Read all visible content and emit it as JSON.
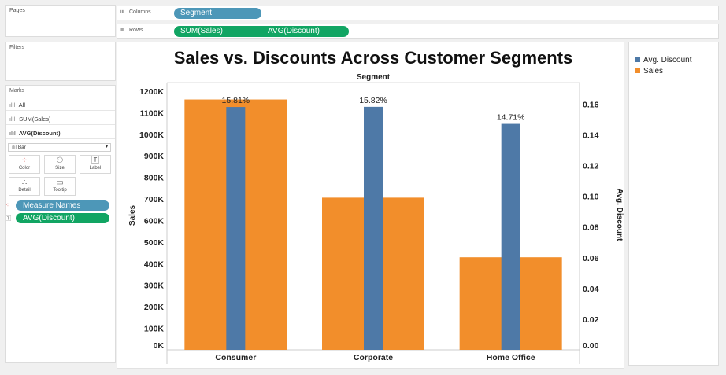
{
  "left_pane": {
    "pages_title": "Pages",
    "filters_title": "Filters",
    "marks_title": "Marks",
    "mark_layers": [
      {
        "label": "All",
        "icon": "bar-icon",
        "bold": false
      },
      {
        "label": "SUM(Sales)",
        "icon": "bar-icon",
        "bold": false
      },
      {
        "label": "AVG(Discount)",
        "icon": "bar-icon",
        "bold": true
      }
    ],
    "mark_type": "Bar",
    "mark_buttons": [
      "Color",
      "Size",
      "Label",
      "Detail",
      "Tooltip"
    ],
    "mark_pills": [
      {
        "label": "Measure Names",
        "icon": "color-dots-icon",
        "color": "#4d97b8"
      },
      {
        "label": "AVG(Discount)",
        "icon": "text-icon",
        "color": "#11a563"
      }
    ]
  },
  "shelves": {
    "columns_label": "Columns",
    "rows_label": "Rows",
    "column_pills": [
      "Segment"
    ],
    "row_pills": [
      "SUM(Sales)",
      "AVG(Discount)"
    ]
  },
  "legend": {
    "items": [
      {
        "label": "Avg. Discount",
        "color": "#4e79a7"
      },
      {
        "label": "Sales",
        "color": "#f28e2b"
      }
    ]
  },
  "chart_data": {
    "type": "bar",
    "title": "Sales vs. Discounts Across Customer Segments",
    "header": "Segment",
    "categories": [
      "Consumer",
      "Corporate",
      "Home Office"
    ],
    "series": [
      {
        "name": "Sales",
        "axis": "left",
        "color": "#f28e2b",
        "values": [
          1161401,
          706146,
          429653
        ]
      },
      {
        "name": "Avg. Discount",
        "axis": "right",
        "color": "#4e79a7",
        "values": [
          0.1581,
          0.1582,
          0.1471
        ]
      }
    ],
    "data_labels": [
      "15.81%",
      "15.82%",
      "14.71%"
    ],
    "ylabel": "Sales",
    "ylabel_right": "Avg. Discount",
    "ylim": [
      0,
      1240000
    ],
    "ylim_right": [
      0,
      0.174
    ],
    "yticks": [
      0,
      100000,
      200000,
      300000,
      400000,
      500000,
      600000,
      700000,
      800000,
      900000,
      1000000,
      1100000,
      1200000
    ],
    "yticklabels": [
      "0K",
      "100K",
      "200K",
      "300K",
      "400K",
      "500K",
      "600K",
      "700K",
      "800K",
      "900K",
      "1000K",
      "1100K",
      "1200K"
    ],
    "yticks_right": [
      0,
      0.02,
      0.04,
      0.06,
      0.08,
      0.1,
      0.12,
      0.14,
      0.16
    ],
    "yticklabels_right": [
      "0.00",
      "0.02",
      "0.04",
      "0.06",
      "0.08",
      "0.10",
      "0.12",
      "0.14",
      "0.16"
    ]
  }
}
